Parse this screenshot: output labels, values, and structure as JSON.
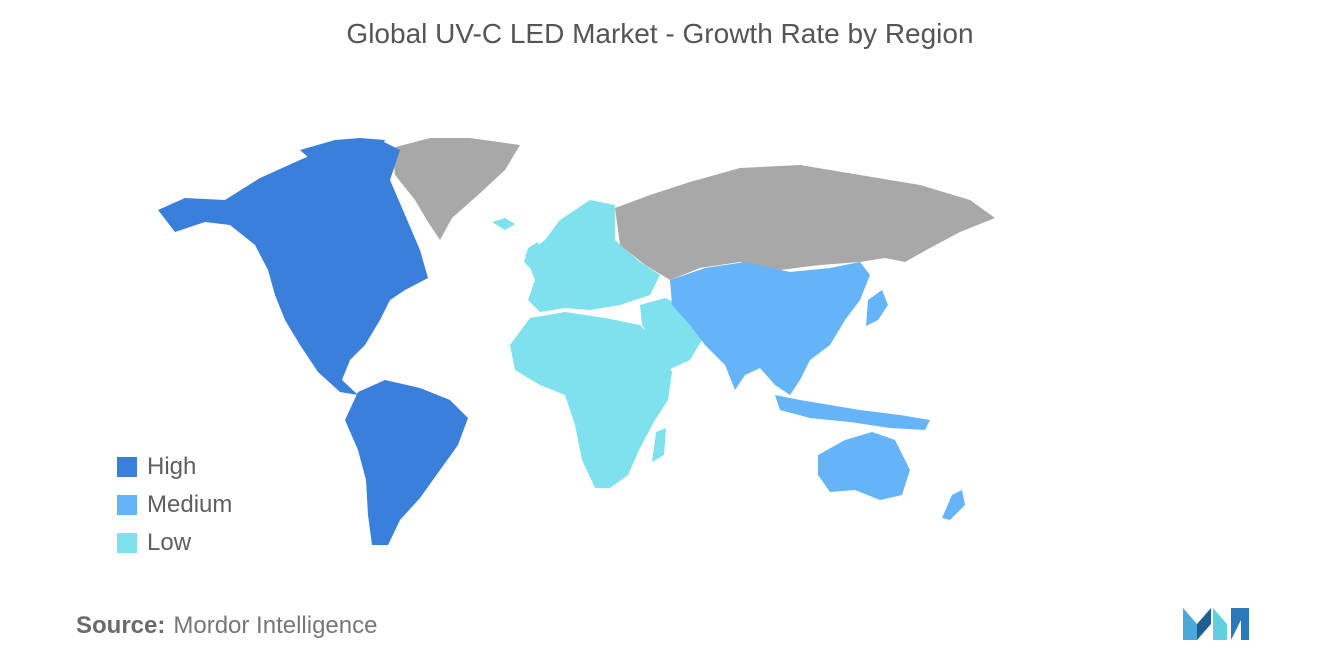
{
  "title": "Global UV-C LED Market - Growth Rate by Region",
  "legend": [
    {
      "label": "High",
      "color": "#3a7fd9"
    },
    {
      "label": "Medium",
      "color": "#66b4f8"
    },
    {
      "label": "Low",
      "color": "#7fe0ee"
    }
  ],
  "no_data_color": "#a8a8a8",
  "regions": [
    {
      "name": "North America",
      "level": "High"
    },
    {
      "name": "South America",
      "level": "High"
    },
    {
      "name": "Asia-Pacific",
      "level": "Medium"
    },
    {
      "name": "Europe",
      "level": "Low"
    },
    {
      "name": "Middle East and Africa",
      "level": "Low"
    }
  ],
  "source": {
    "label": "Source:",
    "value": "Mordor Intelligence"
  },
  "logo": "mordor-intelligence-logo"
}
